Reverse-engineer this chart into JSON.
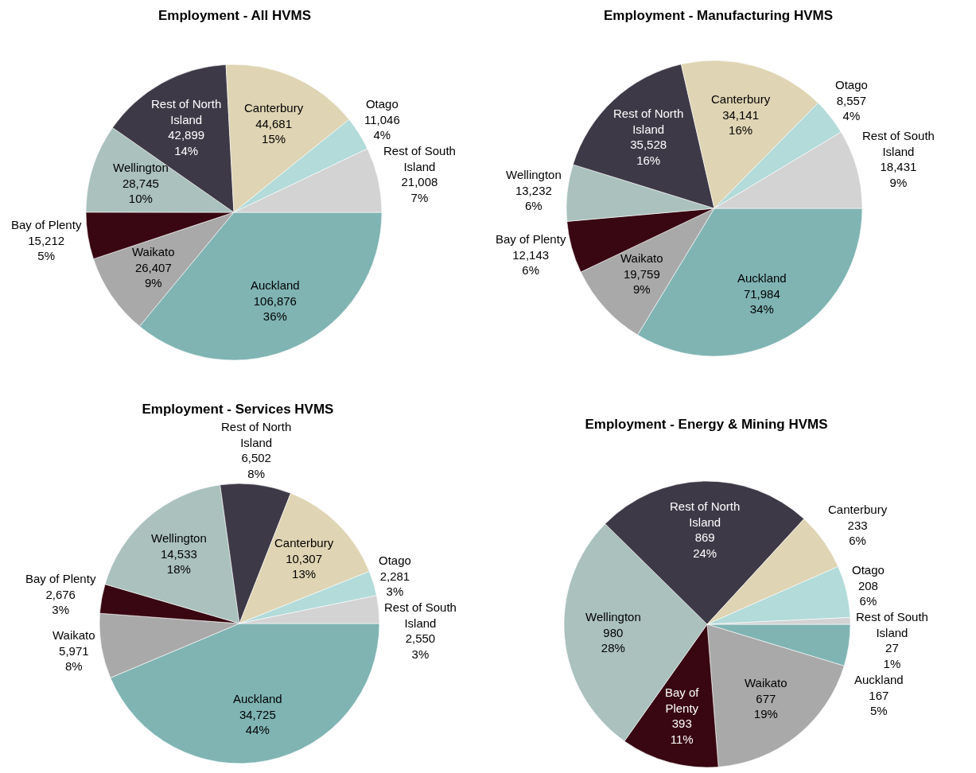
{
  "chart_data": [
    {
      "type": "pie",
      "title": "Employment - All HVMS",
      "categories": [
        "Auckland",
        "Waikato",
        "Bay of Plenty",
        "Wellington",
        "Rest of North Island",
        "Canterbury",
        "Otago",
        "Rest of South Island"
      ],
      "values": [
        106876,
        26407,
        15212,
        28745,
        42899,
        44681,
        11046,
        21008
      ],
      "value_labels": [
        "106,876 36%",
        "26,407 9%",
        "15,212 5%",
        "28,745 10%",
        "42,899 14%",
        "44,681 15%",
        "11,046 4%",
        "21,008 7%"
      ],
      "colors": [
        "#7fb4b3",
        "#a9a9a9",
        "#380711",
        "#aac1bd",
        "#3e3947",
        "#dfd4b3",
        "#b2dbda",
        "#d3d3d3"
      ]
    },
    {
      "type": "pie",
      "title": "Employment - Manufacturing HVMS",
      "categories": [
        "Auckland",
        "Waikato",
        "Bay of Plenty",
        "Wellington",
        "Rest of North Island",
        "Canterbury",
        "Otago",
        "Rest of South Island"
      ],
      "values": [
        71984,
        19759,
        12143,
        13232,
        35528,
        34141,
        8557,
        18431
      ],
      "value_labels": [
        "71,984 34%",
        "19,759 9%",
        "12,143 6%",
        "13,232 6%",
        "35,528 16%",
        "34,141 16%",
        "8,557 4%",
        "18,431 9%"
      ],
      "colors": [
        "#7fb4b3",
        "#a9a9a9",
        "#380711",
        "#aac1bd",
        "#3e3947",
        "#dfd4b3",
        "#b2dbda",
        "#d3d3d3"
      ]
    },
    {
      "type": "pie",
      "title": "Employment - Services HVMS",
      "categories": [
        "Auckland",
        "Waikato",
        "Bay of Plenty",
        "Wellington",
        "Rest of North Island",
        "Canterbury",
        "Otago",
        "Rest of South Island"
      ],
      "values": [
        34725,
        5971,
        2676,
        14533,
        6502,
        10307,
        2281,
        2550
      ],
      "value_labels": [
        "34,725 44%",
        "5,971 8%",
        "2,676 3%",
        "14,533 18%",
        "6,502 8%",
        "10,307 13%",
        "2,281 3%",
        "2,550 3%"
      ],
      "colors": [
        "#7fb4b3",
        "#a9a9a9",
        "#380711",
        "#aac1bd",
        "#3e3947",
        "#dfd4b3",
        "#b2dbda",
        "#d3d3d3"
      ]
    },
    {
      "type": "pie",
      "title": "Employment - Energy & Mining HVMS",
      "categories": [
        "Auckland",
        "Waikato",
        "Bay of Plenty",
        "Wellington",
        "Rest of North Island",
        "Canterbury",
        "Otago",
        "Rest of South Island"
      ],
      "values": [
        167,
        677,
        393,
        980,
        869,
        233,
        208,
        27
      ],
      "value_labels": [
        "167 5%",
        "677 19%",
        "393 11%",
        "980 28%",
        "869 24%",
        "233 6%",
        "208 6%",
        "27 1%"
      ],
      "colors": [
        "#7fb4b3",
        "#a9a9a9",
        "#380711",
        "#aac1bd",
        "#3e3947",
        "#dfd4b3",
        "#b2dbda",
        "#d3d3d3"
      ]
    }
  ]
}
